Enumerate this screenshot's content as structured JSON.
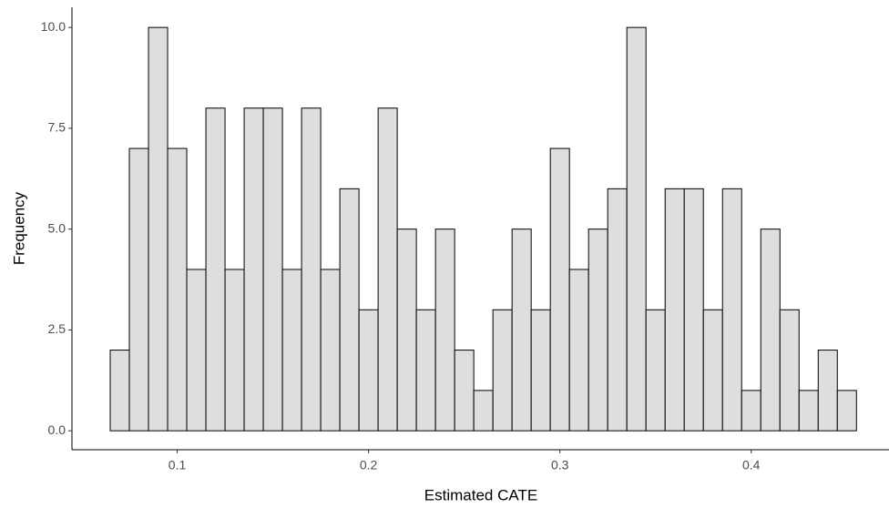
{
  "chart_data": {
    "type": "histogram",
    "x_label": "Estimated CATE",
    "y_label": "Frequency",
    "bins": [
      0.065,
      0.075,
      0.085,
      0.095,
      0.105,
      0.115,
      0.125,
      0.135,
      0.145,
      0.155,
      0.165,
      0.175,
      0.185,
      0.195,
      0.205,
      0.215,
      0.225,
      0.235,
      0.245,
      0.255,
      0.265,
      0.275,
      0.285,
      0.295,
      0.305,
      0.315,
      0.325,
      0.335,
      0.345,
      0.355,
      0.365,
      0.375,
      0.385,
      0.395,
      0.405,
      0.415,
      0.425,
      0.435,
      0.445,
      0.455
    ],
    "values": [
      2,
      7,
      10,
      7,
      4,
      8,
      4,
      8,
      8,
      4,
      8,
      4,
      6,
      3,
      8,
      5,
      3,
      5,
      2,
      1,
      3,
      5,
      3,
      7,
      4,
      5,
      6,
      10,
      3,
      6,
      6,
      3,
      6,
      1,
      5,
      3,
      1,
      2,
      1
    ],
    "color": "#dedede",
    "edge_color": "#000000",
    "xlim": [
      0.045,
      0.472
    ],
    "ylim": [
      -0.47,
      10.5
    ],
    "xticks": [
      0.1,
      0.2,
      0.3,
      0.4
    ],
    "yticks": [
      {
        "value": 0,
        "label": "0.0"
      },
      2.5,
      {
        "value": 5,
        "label": "5.0"
      },
      7.5,
      {
        "value": 10,
        "label": "10.0"
      }
    ],
    "grid": false
  }
}
